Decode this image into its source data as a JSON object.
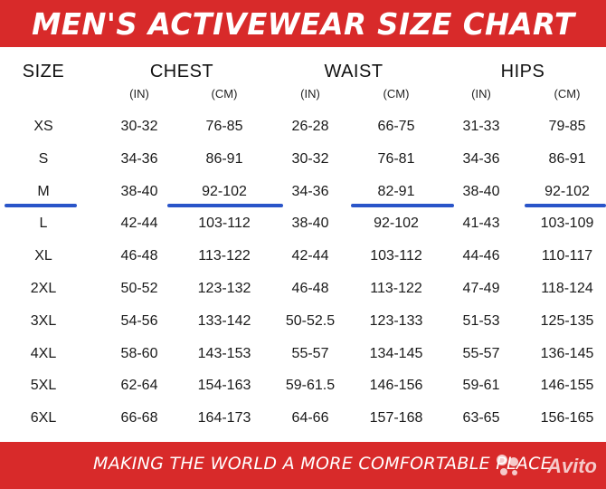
{
  "title": "MEN'S ACTIVEWEAR SIZE CHART",
  "columns": {
    "size": "SIZE",
    "chest": "CHEST",
    "waist": "WAIST",
    "hips": "HIPS"
  },
  "units": [
    "(IN)",
    "(CM)",
    "(IN)",
    "(CM)",
    "(IN)",
    "(CM)"
  ],
  "rows": [
    {
      "size": "XS",
      "chest_in": "30-32",
      "chest_cm": "76-85",
      "waist_in": "26-28",
      "waist_cm": "66-75",
      "hips_in": "31-33",
      "hips_cm": "79-85"
    },
    {
      "size": "S",
      "chest_in": "34-36",
      "chest_cm": "86-91",
      "waist_in": "30-32",
      "waist_cm": "76-81",
      "hips_in": "34-36",
      "hips_cm": "86-91"
    },
    {
      "size": "M",
      "chest_in": "38-40",
      "chest_cm": "92-102",
      "waist_in": "34-36",
      "waist_cm": "82-91",
      "hips_in": "38-40",
      "hips_cm": "92-102"
    },
    {
      "size": "L",
      "chest_in": "42-44",
      "chest_cm": "103-112",
      "waist_in": "38-40",
      "waist_cm": "92-102",
      "hips_in": "41-43",
      "hips_cm": "103-109"
    },
    {
      "size": "XL",
      "chest_in": "46-48",
      "chest_cm": "113-122",
      "waist_in": "42-44",
      "waist_cm": "103-112",
      "hips_in": "44-46",
      "hips_cm": "110-117"
    },
    {
      "size": "2XL",
      "chest_in": "50-52",
      "chest_cm": "123-132",
      "waist_in": "46-48",
      "waist_cm": "113-122",
      "hips_in": "47-49",
      "hips_cm": "118-124"
    },
    {
      "size": "3XL",
      "chest_in": "54-56",
      "chest_cm": "133-142",
      "waist_in": "50-52.5",
      "waist_cm": "123-133",
      "hips_in": "51-53",
      "hips_cm": "125-135"
    },
    {
      "size": "4XL",
      "chest_in": "58-60",
      "chest_cm": "143-153",
      "waist_in": "55-57",
      "waist_cm": "134-145",
      "hips_in": "55-57",
      "hips_cm": "136-145"
    },
    {
      "size": "5XL",
      "chest_in": "62-64",
      "chest_cm": "154-163",
      "waist_in": "59-61.5",
      "waist_cm": "146-156",
      "hips_in": "59-61",
      "hips_cm": "146-155"
    },
    {
      "size": "6XL",
      "chest_in": "66-68",
      "chest_cm": "164-173",
      "waist_in": "64-66",
      "waist_cm": "157-168",
      "hips_in": "63-65",
      "hips_cm": "156-165"
    }
  ],
  "footer": "MAKING THE WORLD A MORE COMFORTABLE PLACE",
  "watermark": "Avito",
  "colors": {
    "brand_red": "#d82a2a",
    "highlight_blue": "#2a55c9"
  }
}
